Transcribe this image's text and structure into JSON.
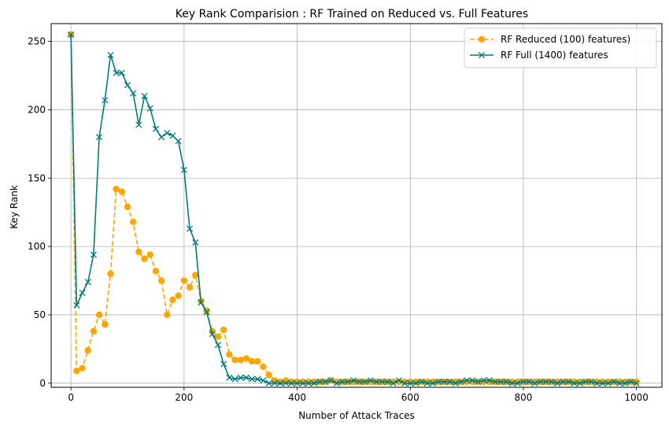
{
  "chart_data": {
    "type": "line",
    "title": "Key Rank Comparision : RF Trained on Reduced vs. Full Features",
    "xlabel": "Number of Attack Traces",
    "ylabel": "Key Rank",
    "xlim": [
      -35,
      1045
    ],
    "ylim": [
      -3,
      263
    ],
    "xticks": [
      0,
      200,
      400,
      600,
      800,
      1000
    ],
    "yticks": [
      0,
      50,
      100,
      150,
      200,
      250
    ],
    "grid": true,
    "legend_position": "top-right",
    "x": [
      0,
      10,
      20,
      30,
      40,
      50,
      60,
      70,
      80,
      90,
      100,
      110,
      120,
      130,
      140,
      150,
      160,
      170,
      180,
      190,
      200,
      210,
      220,
      230,
      240,
      250,
      260,
      270,
      280,
      290,
      300,
      310,
      320,
      330,
      340,
      350,
      360,
      370,
      380,
      390,
      400,
      410,
      420,
      430,
      440,
      450,
      460,
      470,
      480,
      490,
      500,
      510,
      520,
      530,
      540,
      550,
      560,
      570,
      580,
      590,
      600,
      610,
      620,
      630,
      640,
      650,
      660,
      670,
      680,
      690,
      700,
      710,
      720,
      730,
      740,
      750,
      760,
      770,
      780,
      790,
      800,
      810,
      820,
      830,
      840,
      850,
      860,
      870,
      880,
      890,
      900,
      910,
      920,
      930,
      940,
      950,
      960,
      970,
      980,
      990,
      1000
    ],
    "series": [
      {
        "name": "RF Reduced (100) features)",
        "color": "#FFA500",
        "line_style": "dashed",
        "marker": "circle",
        "values": [
          255,
          9,
          11,
          24,
          38,
          50,
          43,
          80,
          142,
          140,
          129,
          118,
          96,
          91,
          94,
          82,
          75,
          50,
          61,
          64,
          75,
          70,
          79,
          60,
          53,
          38,
          34,
          39,
          21,
          17,
          17,
          18,
          16,
          16,
          12,
          6,
          2,
          1,
          2,
          1,
          1,
          1,
          1,
          1,
          1,
          1,
          2,
          1,
          1,
          1,
          1,
          1,
          1,
          1,
          1,
          1,
          1,
          1,
          1,
          1,
          1,
          1,
          1,
          1,
          1,
          1,
          1,
          1,
          1,
          1,
          1,
          1,
          1,
          1,
          1,
          1,
          1,
          1,
          1,
          1,
          1,
          1,
          1,
          1,
          1,
          1,
          1,
          1,
          1,
          1,
          1,
          1,
          1,
          1,
          1,
          1,
          1,
          1,
          1,
          1,
          1
        ]
      },
      {
        "name": "RF Full (1400) features",
        "color": "#007B78",
        "line_style": "solid",
        "marker": "x",
        "values": [
          255,
          57,
          66,
          74,
          94,
          180,
          207,
          240,
          227,
          227,
          218,
          212,
          189,
          210,
          201,
          186,
          180,
          183,
          181,
          177,
          156,
          113,
          103,
          59,
          52,
          36,
          28,
          14,
          4,
          3,
          4,
          4,
          3,
          3,
          2,
          0,
          0,
          0,
          0,
          0,
          0,
          0,
          0,
          0,
          1,
          1,
          2,
          0,
          1,
          1,
          2,
          1,
          1,
          2,
          1,
          1,
          1,
          0,
          2,
          0,
          0,
          0,
          1,
          0,
          0,
          1,
          1,
          1,
          0,
          1,
          2,
          2,
          1,
          2,
          2,
          1,
          1,
          1,
          0,
          0,
          1,
          1,
          0,
          1,
          1,
          1,
          0,
          1,
          1,
          0,
          0,
          1,
          1,
          0,
          0,
          0,
          1,
          0,
          0,
          1,
          0
        ]
      }
    ]
  }
}
